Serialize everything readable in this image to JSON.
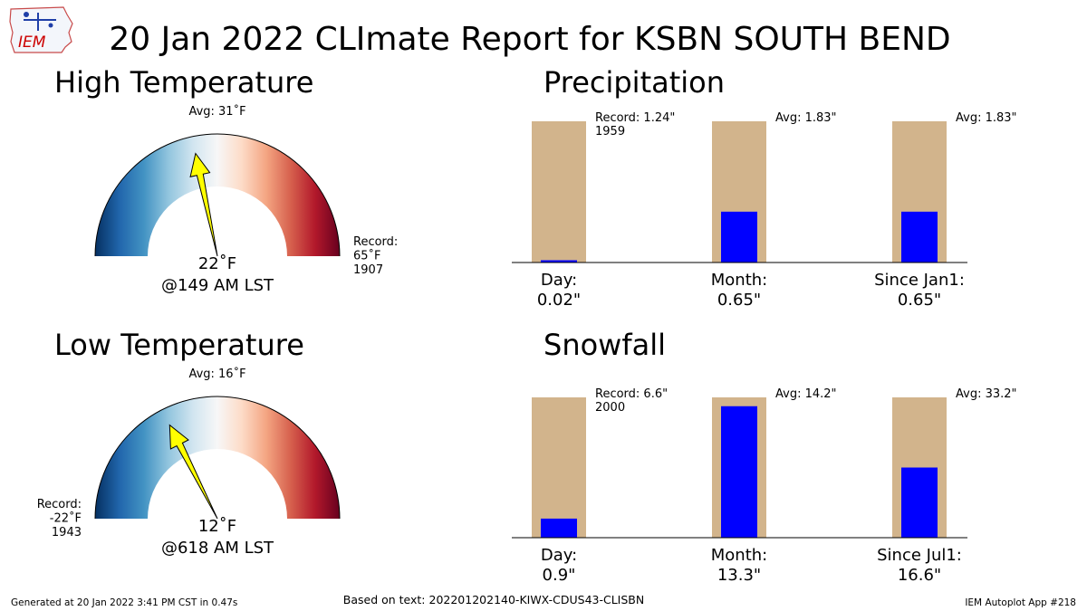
{
  "title": "20 Jan 2022 CLImate Report for KSBN SOUTH BEND",
  "logo": {
    "text": "IEM",
    "icon": "iowa-state-outline-icon",
    "color": "#cc0000"
  },
  "footer": {
    "generated": "Generated at 20 Jan 2022 3:41 PM CST in 0.47s",
    "source": "Based on text: 202201202140-KIWX-CDUS43-CLISBN",
    "app": "IEM Autoplot App #218"
  },
  "colors": {
    "needle": "#ffff00",
    "bar_normal": "#d2b48c",
    "bar_observed": "#0000ff",
    "cold": "#053061",
    "warm": "#67001f"
  },
  "chart_data": [
    {
      "type": "gauge",
      "id": "high",
      "title": "High Temperature",
      "value": 22,
      "value_label": "22˚F",
      "time_label": "@149 AM LST",
      "avg": 31,
      "avg_label": "Avg: 31˚F",
      "record_lines": [
        "Record:",
        "65˚F",
        "1907"
      ],
      "range": [
        -30,
        90
      ]
    },
    {
      "type": "gauge",
      "id": "low",
      "title": "Low Temperature",
      "value": 12,
      "value_label": "12˚F",
      "time_label": "@618 AM LST",
      "avg": 16,
      "avg_label": "Avg: 16˚F",
      "record_lines": [
        "Record:",
        "-22˚F",
        "1943"
      ],
      "range": [
        -30,
        90
      ]
    },
    {
      "type": "bar",
      "id": "precip",
      "title": "Precipitation",
      "categories": [
        "Day:",
        "Month:",
        "Since Jan1:"
      ],
      "value_labels": [
        "0.02\"",
        "0.65\"",
        "0.65\""
      ],
      "observed_fraction": [
        0.016,
        0.36,
        0.36
      ],
      "annotations": [
        [
          "Record: 1.24\"",
          "1959"
        ],
        [
          "Avg: 1.83\""
        ],
        [
          "Avg: 1.83\""
        ]
      ]
    },
    {
      "type": "bar",
      "id": "snow",
      "title": "Snowfall",
      "categories": [
        "Day:",
        "Month:",
        "Since Jul1:"
      ],
      "value_labels": [
        "0.9\"",
        "13.3\"",
        "16.6\""
      ],
      "observed_fraction": [
        0.136,
        0.937,
        0.5
      ],
      "annotations": [
        [
          "Record: 6.6\"",
          "2000"
        ],
        [
          "Avg: 14.2\""
        ],
        [
          "Avg: 33.2\""
        ]
      ]
    }
  ]
}
